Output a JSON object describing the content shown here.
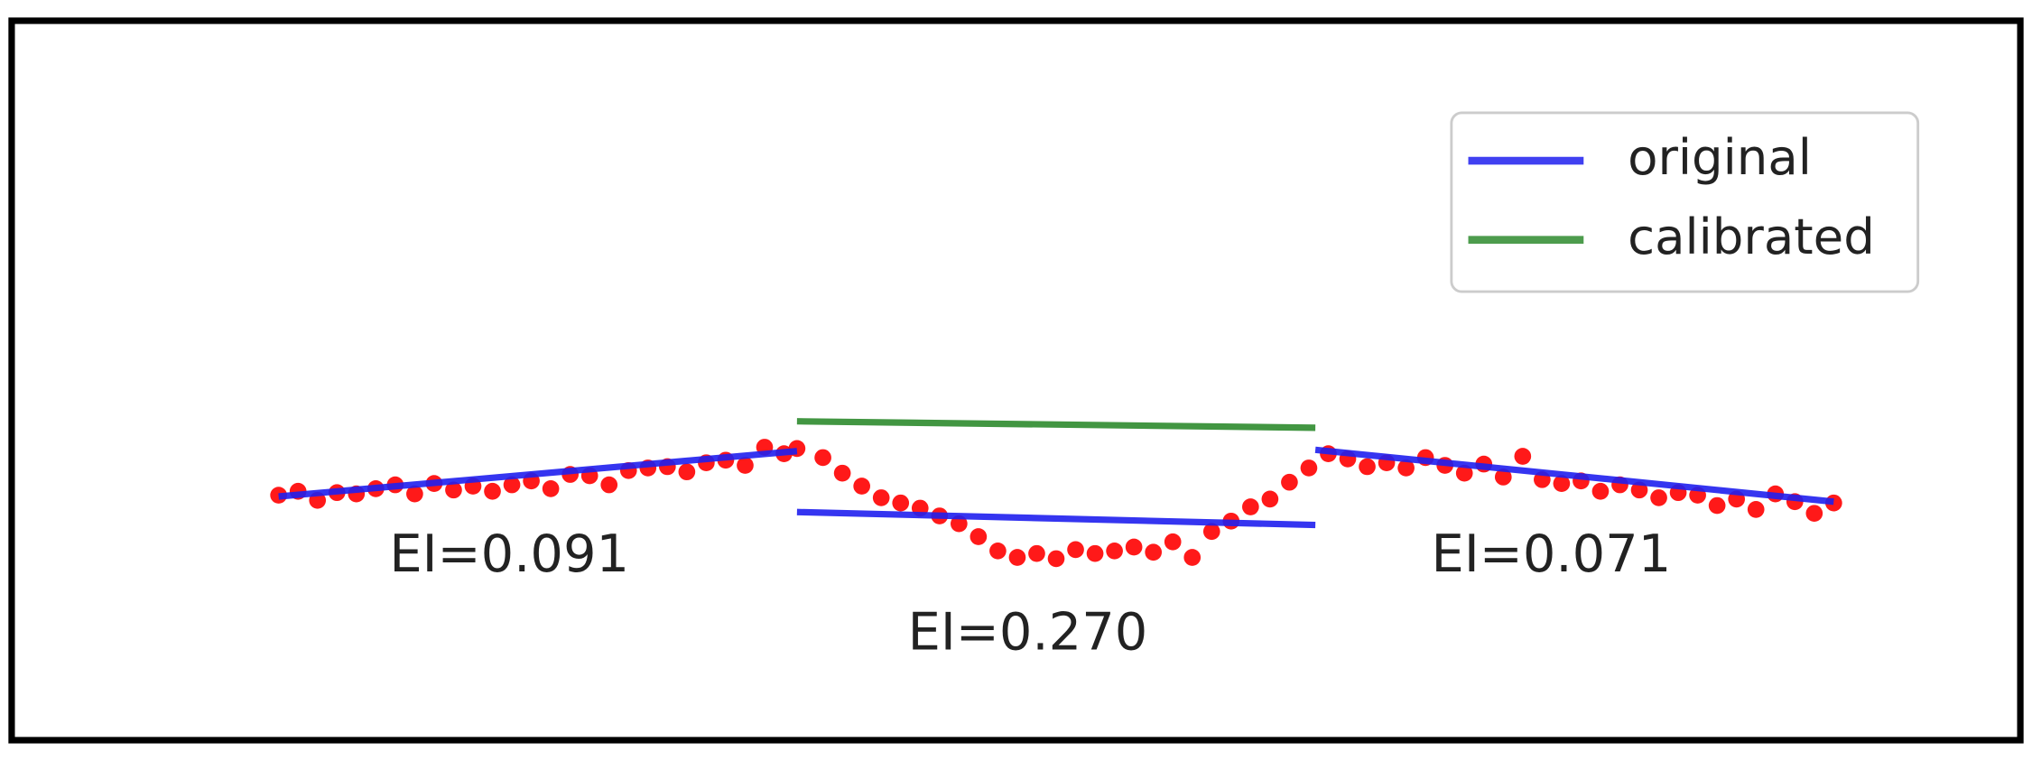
{
  "chart_data": {
    "type": "scatter",
    "xlim": [
      0,
      120
    ],
    "ylim": [
      0,
      40
    ],
    "legend": "upper right",
    "points": {
      "color": "#ff0000",
      "x": [
        0,
        1.5,
        3,
        4.5,
        6,
        7.5,
        9,
        10.5,
        12,
        13.5,
        15,
        16.5,
        18,
        19.5,
        21,
        22.5,
        24,
        25.5,
        27,
        28.5,
        30,
        31.5,
        33,
        34.5,
        36,
        37.5,
        39,
        40,
        42,
        43.5,
        45,
        46.5,
        48,
        49.5,
        51,
        52.5,
        54,
        55.5,
        57,
        58.5,
        60,
        61.5,
        63,
        64.5,
        66,
        67.5,
        69,
        70.5,
        72,
        73.5,
        75,
        76.5,
        78,
        79.5,
        81,
        82.5,
        84,
        85.5,
        87,
        88.5,
        90,
        91.5,
        93,
        94.5,
        96,
        97.5,
        99,
        100.5,
        102,
        103.5,
        105,
        106.5,
        108,
        109.5,
        111,
        112.5,
        114,
        115.5,
        117,
        118.5,
        120
      ],
      "values": [
        11.8,
        12.1,
        11.4,
        12.0,
        11.9,
        12.3,
        12.6,
        11.9,
        12.7,
        12.2,
        12.5,
        12.1,
        12.6,
        12.9,
        12.3,
        13.4,
        13.3,
        12.6,
        13.7,
        13.9,
        14.0,
        13.6,
        14.3,
        14.5,
        14.1,
        15.5,
        15.0,
        15.4,
        14.7,
        13.5,
        12.5,
        11.6,
        11.2,
        10.8,
        10.2,
        9.6,
        8.6,
        7.5,
        7.0,
        7.3,
        6.9,
        7.6,
        7.3,
        7.5,
        7.8,
        7.4,
        8.2,
        7.0,
        9.0,
        9.8,
        10.9,
        11.5,
        12.8,
        13.9,
        15.0,
        14.6,
        14.0,
        14.3,
        13.9,
        14.7,
        14.1,
        13.5,
        14.2,
        13.2,
        14.8,
        13.0,
        12.7,
        12.9,
        12.1,
        12.6,
        12.2,
        11.6,
        12.0,
        11.8,
        11.0,
        11.5,
        10.7,
        11.9,
        11.3,
        10.4,
        11.2
      ]
    },
    "series": [
      {
        "name": "original",
        "color": "#1f1fee",
        "x": [
          0,
          40,
          40,
          40,
          80,
          80,
          80,
          120
        ],
        "values": [
          11.7,
          15.2,
          null,
          10.5,
          9.5,
          null,
          15.3,
          11.3
        ]
      },
      {
        "name": "calibrated",
        "color": "#2e8b2e",
        "x": [
          40,
          80
        ],
        "values": [
          17.5,
          17.0
        ]
      }
    ],
    "annotations": [
      "EI=0.091",
      "EI=0.270",
      "EI=0.071"
    ]
  }
}
